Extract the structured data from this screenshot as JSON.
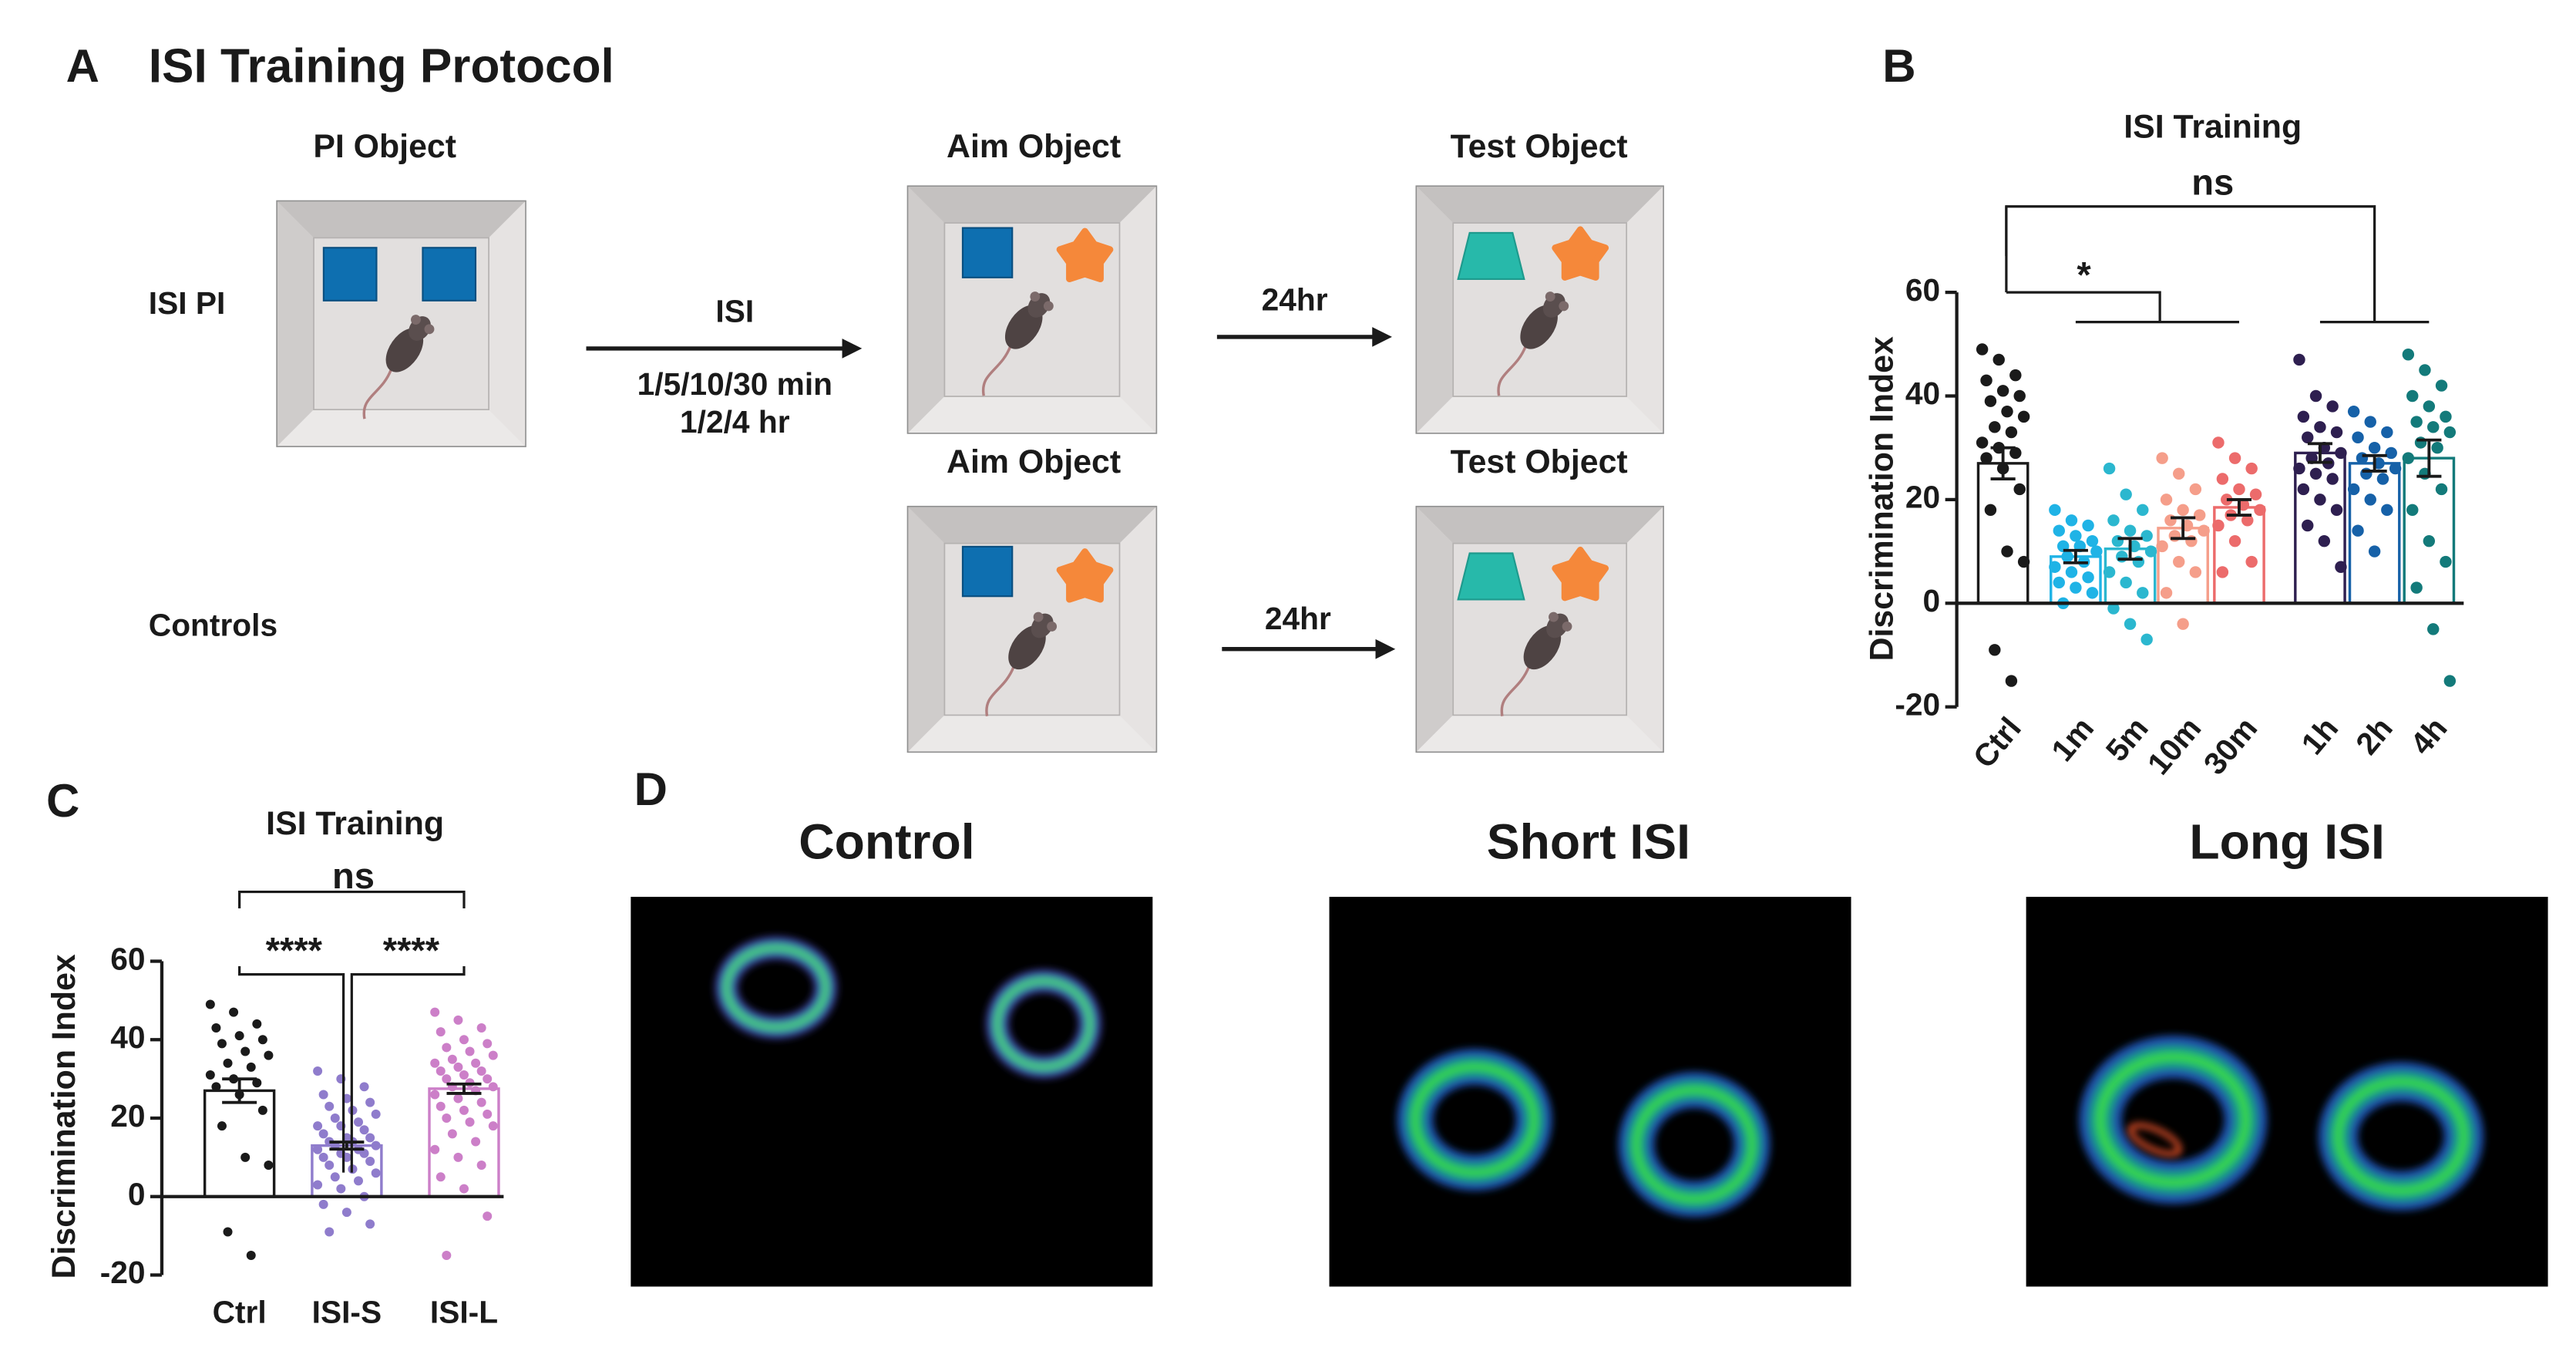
{
  "panel_labels": [
    "A",
    "B",
    "C",
    "D"
  ],
  "protocol": {
    "title": "ISI Training Protocol",
    "rows": [
      "ISI PI",
      "Controls"
    ],
    "stages": [
      "PI Object",
      "Aim Object",
      "Test Object",
      "Aim Object",
      "Test Object"
    ],
    "isi": "ISI",
    "isi_times": [
      "1/5/10/30 min",
      "1/2/4 hr"
    ],
    "delays": [
      "24hr",
      "24hr"
    ]
  },
  "heatmaps": {
    "titles": [
      "Control",
      "Short ISI",
      "Long ISI"
    ]
  },
  "chart_data": [
    {
      "type": "bar",
      "title": "ISI Training",
      "y_label": "Discrimination Index",
      "categories": [
        "Ctrl",
        "1m",
        "5m",
        "10m",
        "30m",
        "1h",
        "2h",
        "4h"
      ],
      "values": [
        27,
        9,
        10.5,
        14.5,
        18.5,
        29,
        27,
        28
      ],
      "errors": [
        3,
        1.2,
        2,
        2,
        1.5,
        1.8,
        1.5,
        3.5
      ],
      "colors": [
        "#1a1a1a",
        "#1fb3e6",
        "#2bb7cf",
        "#f59e8a",
        "#ec6b6b",
        "#2e1f50",
        "#1661a8",
        "#137a7a"
      ],
      "points": [
        [
          49,
          47,
          44,
          43,
          41,
          40,
          39,
          37,
          36,
          34,
          33,
          31,
          30,
          29,
          28,
          26,
          22,
          18,
          10,
          8,
          -9,
          -15
        ],
        [
          18,
          16,
          15,
          14,
          13,
          12,
          11,
          11,
          10,
          9,
          8,
          7,
          6,
          5,
          4,
          3,
          2,
          0
        ],
        [
          26,
          21,
          18,
          16,
          14,
          13,
          12,
          11,
          10,
          9,
          8,
          6,
          4,
          2,
          -1,
          -4,
          -7
        ],
        [
          28,
          25,
          22,
          20,
          18,
          17,
          16,
          15,
          14,
          13,
          12,
          11,
          8,
          6,
          2,
          -4
        ],
        [
          31,
          28,
          26,
          24,
          22,
          21,
          20,
          19,
          18,
          17,
          16,
          15,
          12,
          8,
          6
        ],
        [
          47,
          40,
          38,
          36,
          34,
          33,
          32,
          30,
          29,
          28,
          27,
          26,
          25,
          24,
          22,
          20,
          18,
          15,
          12,
          7
        ],
        [
          37,
          35,
          33,
          32,
          30,
          29,
          28,
          27,
          26,
          25,
          24,
          22,
          20,
          18,
          14,
          10
        ],
        [
          48,
          45,
          42,
          40,
          38,
          36,
          35,
          34,
          33,
          31,
          30,
          28,
          25,
          22,
          18,
          12,
          8,
          3,
          -5,
          -15
        ]
      ],
      "ylim": [
        -20,
        60
      ],
      "yticks": [
        -20,
        0,
        20,
        40,
        60
      ],
      "annotations": [
        "ns",
        "*"
      ]
    },
    {
      "type": "bar",
      "title": "ISI Training",
      "y_label": "Discrimination Index",
      "categories": [
        "Ctrl",
        "ISI-S",
        "ISI-L"
      ],
      "values": [
        27,
        13,
        27.5
      ],
      "errors": [
        3,
        0.9,
        1.2
      ],
      "colors": [
        "#1a1a1a",
        "#8f7ccc",
        "#cc7fc8"
      ],
      "points": [
        [
          49,
          47,
          44,
          43,
          41,
          40,
          39,
          37,
          36,
          34,
          33,
          31,
          30,
          29,
          28,
          26,
          22,
          18,
          10,
          8,
          -9,
          -15
        ],
        [
          32,
          30,
          28,
          26,
          25,
          24,
          23,
          22,
          21,
          20,
          19,
          18,
          18,
          17,
          16,
          15,
          15,
          14,
          14,
          13,
          13,
          12,
          12,
          11,
          11,
          10,
          10,
          9,
          8,
          7,
          6,
          5,
          4,
          3,
          2,
          0,
          -2,
          -4,
          -7,
          -9
        ],
        [
          47,
          45,
          43,
          42,
          40,
          39,
          38,
          37,
          36,
          35,
          34,
          34,
          33,
          32,
          32,
          31,
          30,
          30,
          29,
          28,
          28,
          27,
          26,
          25,
          24,
          23,
          22,
          21,
          20,
          19,
          18,
          16,
          14,
          12,
          10,
          8,
          5,
          2,
          -5,
          -15
        ]
      ],
      "ylim": [
        -20,
        60
      ],
      "yticks": [
        -20,
        0,
        20,
        40,
        60
      ],
      "annotations": [
        "ns",
        "****",
        "****"
      ]
    }
  ]
}
